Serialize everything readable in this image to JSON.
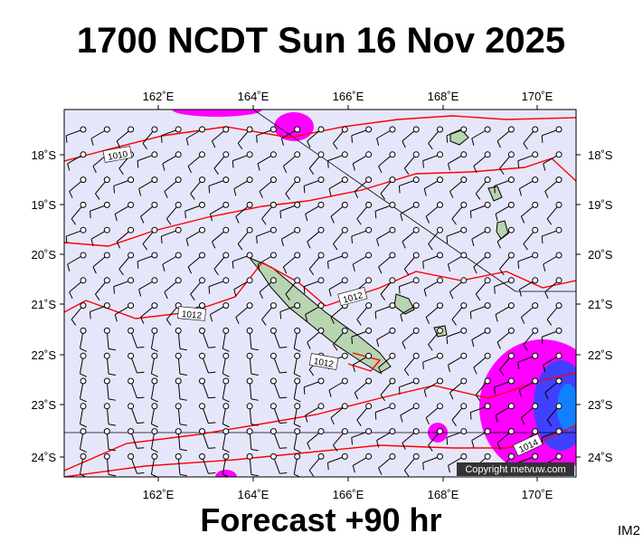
{
  "header": {
    "title": "1700 NCDT Sun 16 Nov 2025"
  },
  "map": {
    "longitude_labels": [
      "162˚E",
      "164˚E",
      "166˚E",
      "168˚E",
      "170˚E"
    ],
    "latitude_labels": [
      "18˚S",
      "19˚S",
      "20˚S",
      "21˚S",
      "22˚S",
      "23˚S",
      "24˚S"
    ],
    "isobar_labels": [
      "1010",
      "1012",
      "1012",
      "1012",
      "1014"
    ],
    "copyright": "Copyright metvuw.com"
  },
  "footer": {
    "forecast": "Forecast +90 hr",
    "code": "IM2"
  }
}
